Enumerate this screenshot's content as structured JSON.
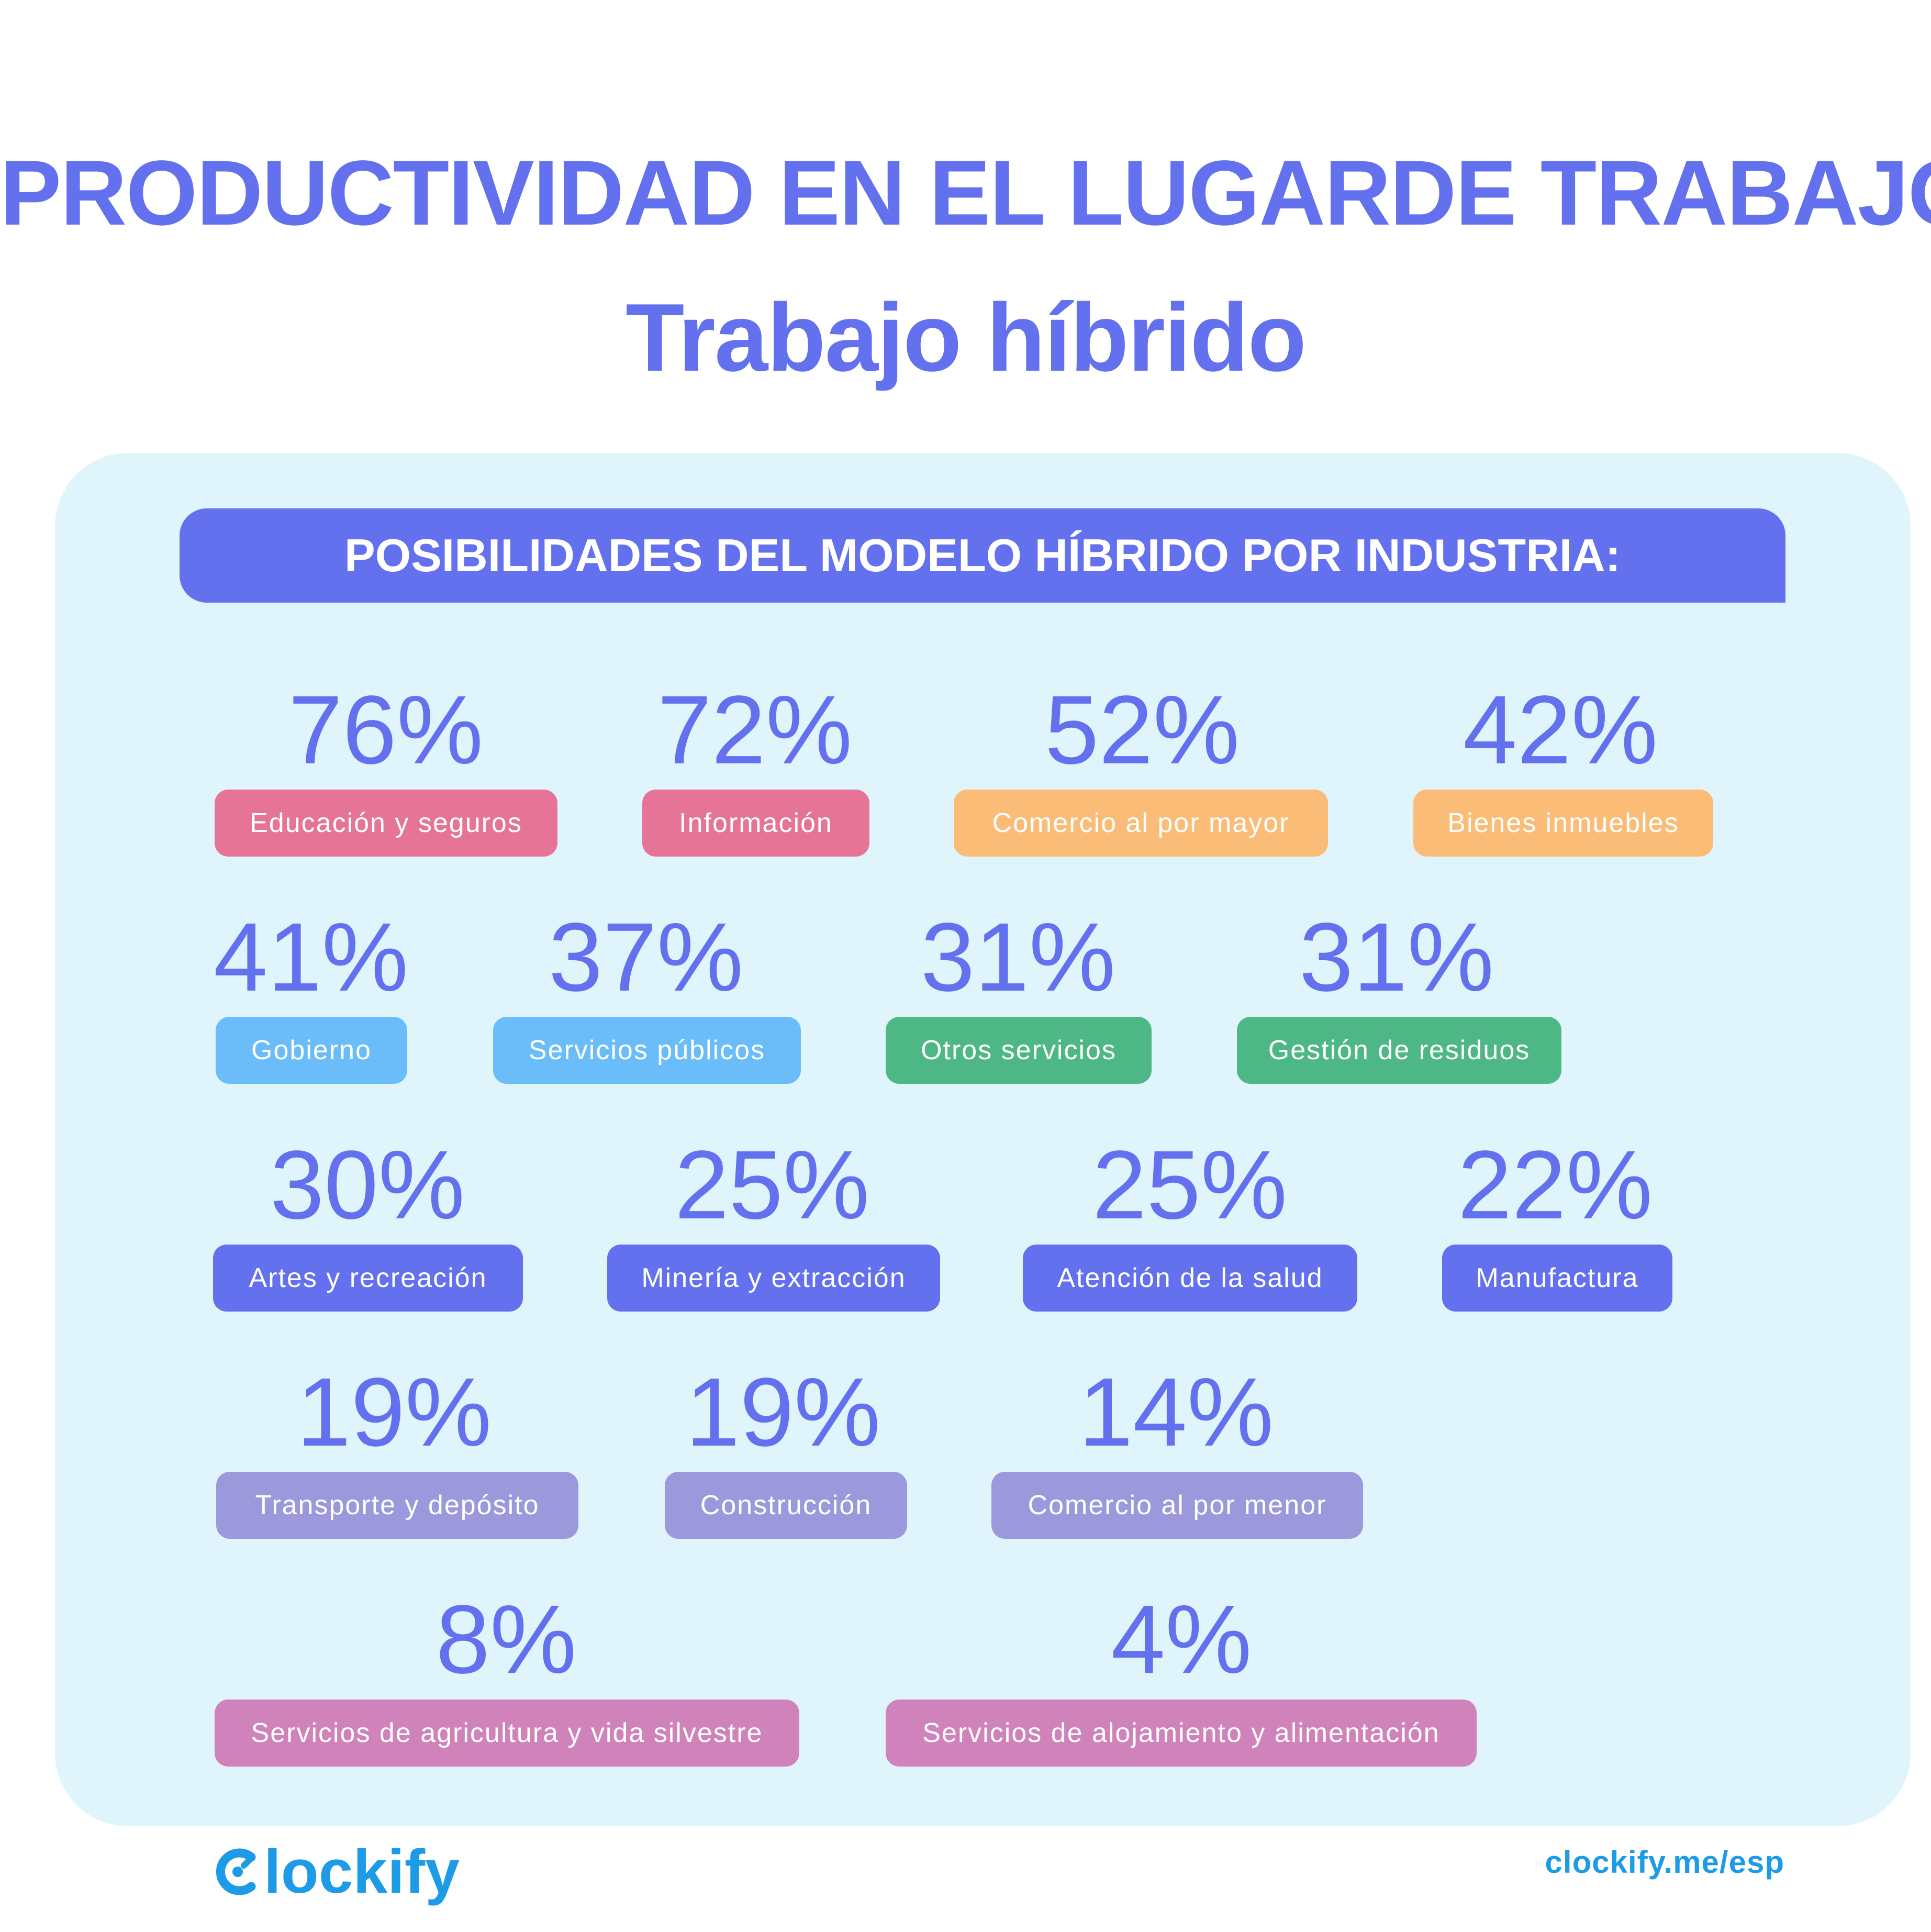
{
  "header": {
    "title": "PRODUCTIVIDAD EN EL LUGARDE TRABAJO",
    "subtitle": "Trabajo híbrido"
  },
  "chart_data": {
    "type": "table",
    "title": "POSIBILIDADES DEL MODELO HÍBRIDO POR INDUSTRIA:",
    "categories": [
      "Educación y seguros",
      "Información",
      "Comercio al por mayor",
      "Bienes inmuebles",
      "Gobierno",
      "Servicios públicos",
      "Otros servicios",
      "Gestión de residuos",
      "Artes y recreación",
      "Minería y extracción",
      "Atención de la salud",
      "Manufactura",
      "Transporte y depósito",
      "Construcción",
      "Comercio al por menor",
      "Servicios de agricultura y vida silvestre",
      "Servicios de alojamiento y alimentación"
    ],
    "values": [
      76,
      72,
      52,
      42,
      41,
      37,
      31,
      31,
      30,
      25,
      25,
      22,
      19,
      19,
      14,
      8,
      4
    ],
    "items": [
      {
        "value": "76%",
        "label": "Educación y seguros",
        "color": "#E57497"
      },
      {
        "value": "72%",
        "label": "Información",
        "color": "#E57497"
      },
      {
        "value": "52%",
        "label": "Comercio al por mayor",
        "color": "#FBBC77"
      },
      {
        "value": "42%",
        "label": "Bienes inmuebles",
        "color": "#FBBC77"
      },
      {
        "value": "41%",
        "label": "Gobierno",
        "color": "#6BBDF9"
      },
      {
        "value": "37%",
        "label": "Servicios públicos",
        "color": "#6BBDF9"
      },
      {
        "value": "31%",
        "label": "Otros servicios",
        "color": "#4DB886"
      },
      {
        "value": "31%",
        "label": "Gestión de residuos",
        "color": "#4DB886"
      },
      {
        "value": "30%",
        "label": "Artes y recreación",
        "color": "#6471EE"
      },
      {
        "value": "25%",
        "label": "Minería y extracción",
        "color": "#6471EE"
      },
      {
        "value": "25%",
        "label": "Atención de la salud",
        "color": "#6471EE"
      },
      {
        "value": "22%",
        "label": "Manufactura",
        "color": "#6471EE"
      },
      {
        "value": "19%",
        "label": "Transporte y depósito",
        "color": "#9B98DC"
      },
      {
        "value": "19%",
        "label": "Construcción",
        "color": "#9B98DC"
      },
      {
        "value": "14%",
        "label": "Comercio al por menor",
        "color": "#9B98DC"
      },
      {
        "value": "8%",
        "label": "Servicios de agricultura y vida silvestre",
        "color": "#CF83BA"
      },
      {
        "value": "4%",
        "label": "Servicios de alojamiento y alimentación",
        "color": "#CF83BA"
      }
    ]
  },
  "footer": {
    "brand": "lockify",
    "url": "clockify.me/esp",
    "brand_color": "#1D9BE6"
  }
}
